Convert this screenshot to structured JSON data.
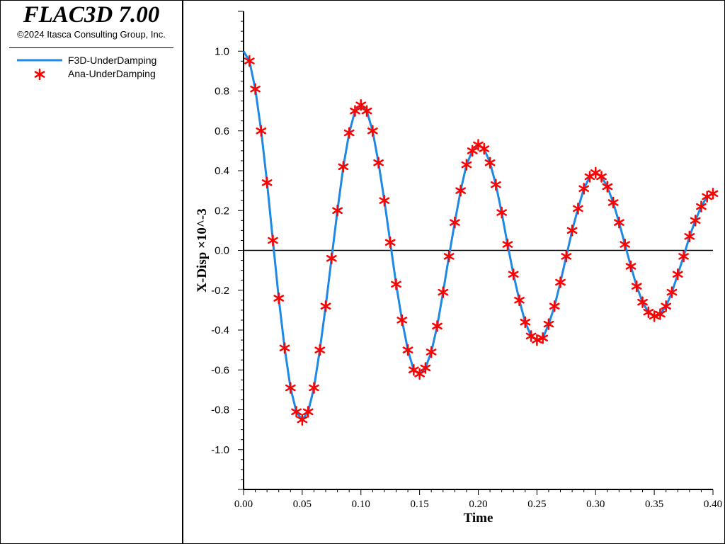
{
  "header": {
    "app_title": "FLAC3D 7.00",
    "copyright": "©2024 Itasca Consulting Group, Inc."
  },
  "legend": [
    {
      "label": "F3D-UnderDamping",
      "kind": "line",
      "color": "#1e88e5"
    },
    {
      "label": "Ana-UnderDamping",
      "kind": "asterisk",
      "color": "#ff0000"
    }
  ],
  "chart_data": {
    "type": "line",
    "xlabel": "Time",
    "ylabel": "X-Disp ×10^-3",
    "xlim": [
      0,
      0.4
    ],
    "ylim": [
      -1.2,
      1.2
    ],
    "x_ticks": [
      "0.00",
      "0.05",
      "0.10",
      "0.15",
      "0.20",
      "0.25",
      "0.30",
      "0.35",
      "0.40"
    ],
    "x_tick_values": [
      0,
      0.05,
      0.1,
      0.15,
      0.2,
      0.25,
      0.3,
      0.35,
      0.4
    ],
    "y_ticks": [
      "1.0",
      "0.8",
      "0.6",
      "0.4",
      "0.2",
      "0.0",
      "-0.2",
      "-0.4",
      "-0.6",
      "-0.8",
      "-1.0"
    ],
    "y_tick_values": [
      1.0,
      0.8,
      0.6,
      0.4,
      0.2,
      0.0,
      -0.2,
      -0.4,
      -0.6,
      -0.8,
      -1.0
    ],
    "zero_line": true,
    "grid": false,
    "legend_position": "left panel",
    "series": [
      {
        "name": "F3D-UnderDamping",
        "style": "line",
        "color": "#1e88e5",
        "x": [
          0.0,
          0.005,
          0.01,
          0.015,
          0.02,
          0.025,
          0.03,
          0.035,
          0.04,
          0.045,
          0.05,
          0.055,
          0.06,
          0.065,
          0.07,
          0.075,
          0.08,
          0.085,
          0.09,
          0.095,
          0.1,
          0.105,
          0.11,
          0.115,
          0.12,
          0.125,
          0.13,
          0.135,
          0.14,
          0.145,
          0.15,
          0.155,
          0.16,
          0.165,
          0.17,
          0.175,
          0.18,
          0.185,
          0.19,
          0.195,
          0.2,
          0.205,
          0.21,
          0.215,
          0.22,
          0.225,
          0.23,
          0.235,
          0.24,
          0.245,
          0.25,
          0.255,
          0.26,
          0.265,
          0.27,
          0.275,
          0.28,
          0.285,
          0.29,
          0.295,
          0.3,
          0.305,
          0.31,
          0.315,
          0.32,
          0.325,
          0.33,
          0.335,
          0.34,
          0.345,
          0.35,
          0.355,
          0.36,
          0.365,
          0.37,
          0.375,
          0.38,
          0.385,
          0.39,
          0.395,
          0.4
        ],
        "y": [
          1.0,
          0.951,
          0.81,
          0.6,
          0.34,
          0.05,
          -0.24,
          -0.49,
          -0.69,
          -0.81,
          -0.85,
          -0.81,
          -0.69,
          -0.5,
          -0.28,
          -0.04,
          0.2,
          0.42,
          0.59,
          0.7,
          0.73,
          0.7,
          0.6,
          0.44,
          0.25,
          0.04,
          -0.17,
          -0.35,
          -0.5,
          -0.6,
          -0.62,
          -0.59,
          -0.51,
          -0.38,
          -0.21,
          -0.03,
          0.14,
          0.3,
          0.43,
          0.5,
          0.53,
          0.51,
          0.44,
          0.33,
          0.19,
          0.03,
          -0.12,
          -0.25,
          -0.36,
          -0.43,
          -0.45,
          -0.44,
          -0.37,
          -0.28,
          -0.16,
          -0.03,
          0.1,
          0.21,
          0.31,
          0.37,
          0.39,
          0.37,
          0.32,
          0.24,
          0.14,
          0.03,
          -0.08,
          -0.18,
          -0.26,
          -0.31,
          -0.33,
          -0.32,
          -0.28,
          -0.21,
          -0.12,
          -0.03,
          0.07,
          0.15,
          0.22,
          0.27,
          0.285
        ]
      },
      {
        "name": "Ana-UnderDamping",
        "style": "asterisk",
        "color": "#ff0000",
        "x": [
          0.005,
          0.01,
          0.015,
          0.02,
          0.025,
          0.03,
          0.035,
          0.04,
          0.045,
          0.05,
          0.055,
          0.06,
          0.065,
          0.07,
          0.075,
          0.08,
          0.085,
          0.09,
          0.095,
          0.1,
          0.105,
          0.11,
          0.115,
          0.12,
          0.125,
          0.13,
          0.135,
          0.14,
          0.145,
          0.15,
          0.155,
          0.16,
          0.165,
          0.17,
          0.175,
          0.18,
          0.185,
          0.19,
          0.195,
          0.2,
          0.205,
          0.21,
          0.215,
          0.22,
          0.225,
          0.23,
          0.235,
          0.24,
          0.245,
          0.25,
          0.255,
          0.26,
          0.265,
          0.27,
          0.275,
          0.28,
          0.285,
          0.29,
          0.295,
          0.3,
          0.305,
          0.31,
          0.315,
          0.32,
          0.325,
          0.33,
          0.335,
          0.34,
          0.345,
          0.35,
          0.355,
          0.36,
          0.365,
          0.37,
          0.375,
          0.38,
          0.385,
          0.39,
          0.395,
          0.4
        ],
        "y": [
          0.951,
          0.81,
          0.6,
          0.34,
          0.05,
          -0.24,
          -0.49,
          -0.69,
          -0.81,
          -0.85,
          -0.81,
          -0.69,
          -0.5,
          -0.28,
          -0.04,
          0.2,
          0.42,
          0.59,
          0.7,
          0.73,
          0.7,
          0.6,
          0.44,
          0.25,
          0.04,
          -0.17,
          -0.35,
          -0.5,
          -0.6,
          -0.62,
          -0.59,
          -0.51,
          -0.38,
          -0.21,
          -0.03,
          0.14,
          0.3,
          0.43,
          0.5,
          0.53,
          0.51,
          0.44,
          0.33,
          0.19,
          0.03,
          -0.12,
          -0.25,
          -0.36,
          -0.43,
          -0.45,
          -0.44,
          -0.37,
          -0.28,
          -0.16,
          -0.03,
          0.1,
          0.21,
          0.31,
          0.37,
          0.39,
          0.37,
          0.32,
          0.24,
          0.14,
          0.03,
          -0.08,
          -0.18,
          -0.26,
          -0.31,
          -0.33,
          -0.32,
          -0.28,
          -0.21,
          -0.12,
          -0.03,
          0.07,
          0.15,
          0.22,
          0.27,
          0.285
        ]
      }
    ]
  }
}
